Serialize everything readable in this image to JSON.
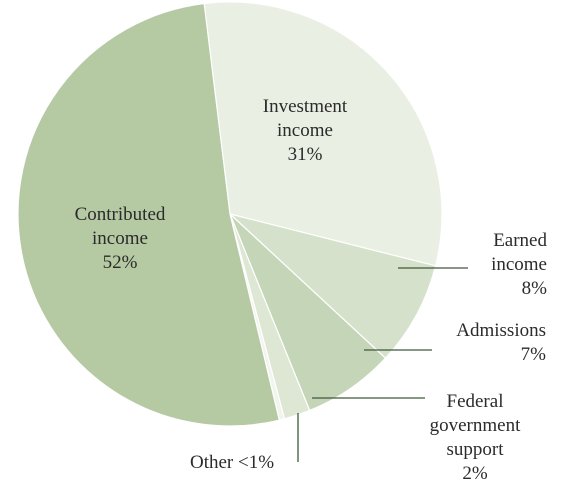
{
  "chart_data": {
    "type": "pie",
    "slices": [
      {
        "key": "investment",
        "lines": [
          "Investment",
          "income",
          "31%"
        ],
        "value": 31,
        "color": "#e9efe3"
      },
      {
        "key": "earned",
        "lines": [
          "Earned",
          "income",
          "8%"
        ],
        "value": 8,
        "color": "#d6e1cc"
      },
      {
        "key": "admissions",
        "lines": [
          "Admissions",
          "7%"
        ],
        "value": 7,
        "color": "#c5d5b8"
      },
      {
        "key": "federal",
        "lines": [
          "Federal",
          "government",
          "support",
          "2%"
        ],
        "value": 2,
        "color": "#dde7d4"
      },
      {
        "key": "other",
        "lines": [
          "Other <1%"
        ],
        "value": 0.4,
        "color": "#f2f5ee"
      },
      {
        "key": "contributed",
        "lines": [
          "Contributed",
          "income",
          "52%"
        ],
        "value": 52,
        "color": "#b5c9a3"
      }
    ]
  }
}
